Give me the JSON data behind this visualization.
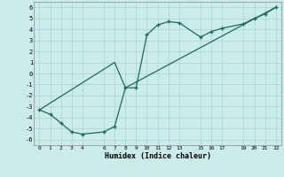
{
  "xlabel": "Humidex (Indice chaleur)",
  "bg_color": "#ccecea",
  "grid_color": "#aad8d5",
  "line_color": "#1a6b5a",
  "xlim": [
    -0.5,
    22.5
  ],
  "ylim": [
    -6.5,
    6.5
  ],
  "xticks": [
    0,
    1,
    2,
    3,
    4,
    6,
    7,
    8,
    9,
    10,
    11,
    12,
    13,
    15,
    16,
    17,
    19,
    20,
    21,
    22
  ],
  "yticks": [
    -6,
    -5,
    -4,
    -3,
    -2,
    -1,
    0,
    1,
    2,
    3,
    4,
    5,
    6
  ],
  "line1_x": [
    0,
    1,
    2,
    3,
    4,
    6,
    7,
    8,
    9,
    10,
    11,
    12,
    13,
    15,
    16,
    17,
    19,
    20,
    21,
    22
  ],
  "line1_y": [
    -3.3,
    -3.7,
    -4.5,
    -5.3,
    -5.5,
    -5.3,
    -4.8,
    -1.3,
    -1.3,
    3.5,
    4.4,
    4.7,
    4.6,
    3.3,
    3.8,
    4.1,
    4.5,
    5.0,
    5.4,
    6.0
  ],
  "line2_x": [
    0,
    7,
    8,
    22
  ],
  "line2_y": [
    -3.3,
    1.0,
    -1.3,
    6.0
  ]
}
